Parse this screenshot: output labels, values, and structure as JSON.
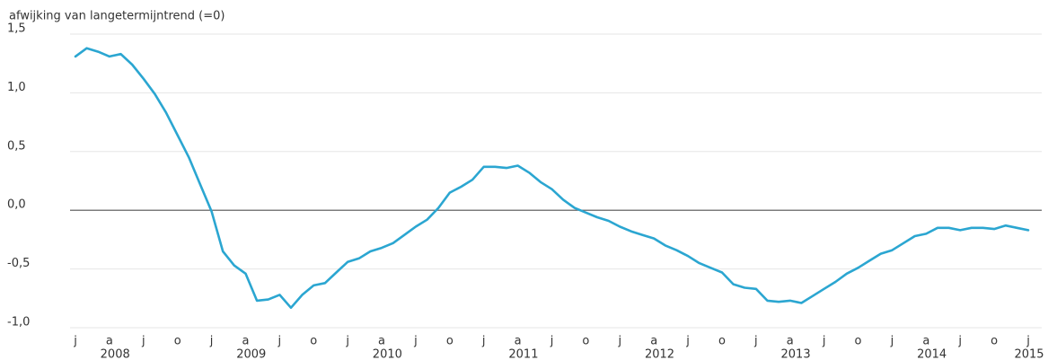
{
  "chart_data": {
    "type": "line",
    "y_axis_label": "afwijking van langetermijntrend (=0)",
    "categories": [
      "j",
      null,
      null,
      "a",
      null,
      null,
      "j",
      null,
      null,
      "o",
      null,
      null,
      "j",
      null,
      null,
      "a",
      null,
      null,
      "j",
      null,
      null,
      "o",
      null,
      null,
      "j",
      null,
      null,
      "a",
      null,
      null,
      "j",
      null,
      null,
      "o",
      null,
      null,
      "j",
      null,
      null,
      "a",
      null,
      null,
      "j",
      null,
      null,
      "o",
      null,
      null,
      "j",
      null,
      null,
      "a",
      null,
      null,
      "j",
      null,
      null,
      "o",
      null,
      null,
      "j",
      null,
      null,
      "a",
      null,
      null,
      "j",
      null,
      null,
      "o",
      null,
      null,
      "j",
      null,
      null,
      "a",
      null,
      null,
      "j",
      null,
      null,
      "o",
      null,
      null,
      "j"
    ],
    "year_labels": [
      "2008",
      "2009",
      "2010",
      "2011",
      "2012",
      "2013",
      "2014",
      "2015"
    ],
    "series": [
      {
        "name": null,
        "color": "#2ba6d1",
        "values": [
          1.31,
          1.38,
          1.35,
          1.31,
          1.33,
          1.24,
          1.12,
          0.99,
          0.83,
          0.64,
          0.45,
          0.22,
          -0.01,
          -0.35,
          -0.47,
          -0.54,
          -0.77,
          -0.76,
          -0.72,
          -0.83,
          -0.72,
          -0.64,
          -0.62,
          -0.53,
          -0.44,
          -0.41,
          -0.35,
          -0.32,
          -0.28,
          -0.21,
          -0.14,
          -0.08,
          0.02,
          0.15,
          0.2,
          0.26,
          0.37,
          0.37,
          0.36,
          0.38,
          0.32,
          0.24,
          0.18,
          0.09,
          0.02,
          -0.02,
          -0.06,
          -0.09,
          -0.14,
          -0.18,
          -0.21,
          -0.24,
          -0.3,
          -0.34,
          -0.39,
          -0.45,
          -0.49,
          -0.53,
          -0.63,
          -0.66,
          -0.67,
          -0.77,
          -0.78,
          -0.77,
          -0.79,
          -0.73,
          -0.67,
          -0.61,
          -0.54,
          -0.49,
          -0.43,
          -0.37,
          -0.34,
          -0.28,
          -0.22,
          -0.2,
          -0.15,
          -0.15,
          -0.17,
          -0.15,
          -0.15,
          -0.16,
          -0.13,
          -0.15,
          -0.17
        ]
      }
    ],
    "ylim": [
      -1.0,
      1.5
    ],
    "yticks": [
      {
        "value": 1.5,
        "label": "1,5"
      },
      {
        "value": 1.0,
        "label": "1,0"
      },
      {
        "value": 0.5,
        "label": "0,5"
      },
      {
        "value": 0.0,
        "label": "0,0"
      },
      {
        "value": -0.5,
        "label": "-0,5"
      },
      {
        "value": -1.0,
        "label": "-1,0"
      }
    ],
    "grid": true,
    "zero_line": true
  }
}
